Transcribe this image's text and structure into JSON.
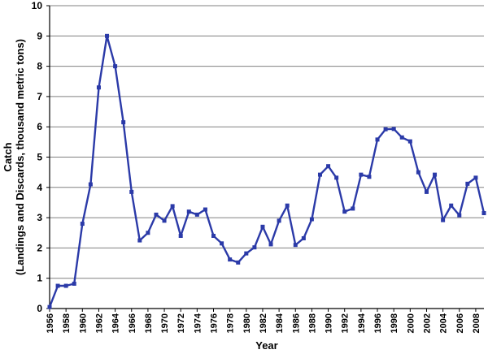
{
  "chart_data": {
    "type": "line",
    "title": "",
    "xlabel": "Year",
    "ylabel_line1": "Catch",
    "ylabel_line2": "(Landings and Discards, thousand metric tons)",
    "xlim": [
      1956,
      2009
    ],
    "ylim": [
      0,
      10
    ],
    "yticks": [
      0,
      1,
      2,
      3,
      4,
      5,
      6,
      7,
      8,
      9,
      10
    ],
    "xticks": [
      1956,
      1958,
      1960,
      1962,
      1964,
      1966,
      1968,
      1970,
      1972,
      1974,
      1976,
      1978,
      1980,
      1982,
      1984,
      1986,
      1988,
      1990,
      1992,
      1994,
      1996,
      1998,
      2000,
      2002,
      2004,
      2006,
      2008
    ],
    "grid": "horizontal",
    "legend": "none",
    "colors": {
      "series": "#2b3aa8",
      "grid": "#808080",
      "axis": "#000000"
    },
    "series": [
      {
        "x": [
          1956,
          1957,
          1958,
          1959,
          1960,
          1961,
          1962,
          1963,
          1964,
          1965,
          1966,
          1967,
          1968,
          1969,
          1970,
          1971,
          1972,
          1973,
          1974,
          1975,
          1976,
          1977,
          1978,
          1979,
          1980,
          1981,
          1982,
          1983,
          1984,
          1985,
          1986,
          1987,
          1988,
          1989,
          1990,
          1991,
          1992,
          1993,
          1994,
          1995,
          1996,
          1997,
          1998,
          1999,
          2000,
          2001,
          2002,
          2003,
          2004,
          2005,
          2006,
          2007,
          2008,
          2009
        ],
        "values": [
          0.05,
          0.75,
          0.75,
          0.82,
          2.8,
          4.1,
          7.3,
          9.0,
          8.0,
          6.15,
          3.85,
          2.25,
          2.5,
          3.1,
          2.9,
          3.38,
          2.4,
          3.2,
          3.1,
          3.27,
          2.4,
          2.15,
          1.62,
          1.52,
          1.82,
          2.02,
          2.7,
          2.12,
          2.9,
          3.4,
          2.1,
          2.32,
          2.95,
          4.42,
          4.7,
          4.32,
          3.2,
          3.3,
          4.42,
          4.35,
          5.58,
          5.92,
          5.93,
          5.65,
          5.52,
          4.5,
          3.85,
          4.42,
          2.92,
          3.4,
          3.08,
          4.12,
          4.32,
          3.15
        ]
      }
    ]
  }
}
